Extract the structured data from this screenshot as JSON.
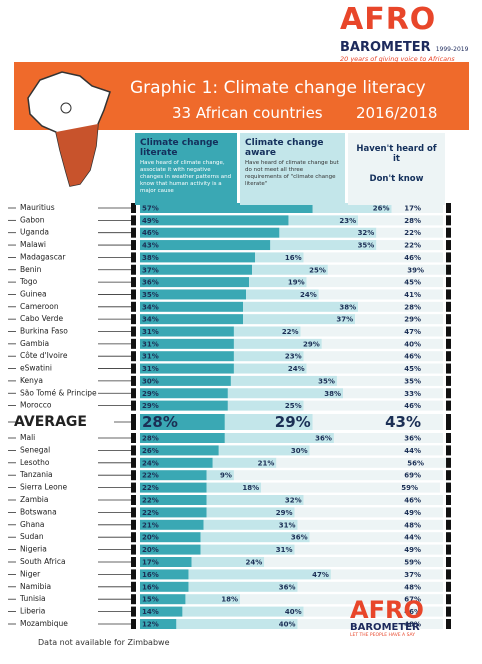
{
  "logo": {
    "brand": "AFRO",
    "name": "BAROMETER",
    "years": "1999-2019",
    "tagline": "20 years of giving voice to Africans"
  },
  "footer_logo": {
    "brand": "AFRO",
    "name": "BAROMETER",
    "tagline": "LET THE PEOPLE HAVE A SAY"
  },
  "chart_data": {
    "type": "bar",
    "orientation": "horizontal",
    "stacked": true,
    "title": "Graphic 1: Climate change literacy",
    "subtitle": "33 African countries",
    "period": "2016/2018",
    "note": "Data not available for Zimbabwe",
    "xlim": [
      0,
      100
    ],
    "categories": [
      "Mauritius",
      "Gabon",
      "Uganda",
      "Malawi",
      "Madagascar",
      "Benin",
      "Togo",
      "Guinea",
      "Cameroon",
      "Cabo Verde",
      "Burkina Faso",
      "Gambia",
      "Côte d'Ivoire",
      "eSwatini",
      "Kenya",
      "São Tomé & Principe",
      "Morocco",
      "AVERAGE",
      "Mali",
      "Senegal",
      "Lesotho",
      "Tanzania",
      "Sierra Leone",
      "Zambia",
      "Botswana",
      "Ghana",
      "Sudan",
      "Nigeria",
      "South Africa",
      "Niger",
      "Namibia",
      "Tunisia",
      "Liberia",
      "Mozambique"
    ],
    "series": [
      {
        "name": "Climate change\nliterate",
        "description": "Have heard of climate change, associate it with negative changes in weather patterns and know that human activity is a major cause",
        "color": "#3aa8b4",
        "values": [
          57,
          49,
          46,
          43,
          38,
          37,
          36,
          35,
          34,
          34,
          31,
          31,
          31,
          31,
          30,
          29,
          29,
          28,
          28,
          26,
          24,
          22,
          22,
          22,
          22,
          21,
          20,
          20,
          17,
          16,
          16,
          15,
          14,
          12
        ],
        "value_labels": [
          "57%",
          "49%",
          "46%",
          "43%",
          "38%",
          "37%",
          "36%",
          "35%",
          "34%",
          "34%",
          "31%",
          "31%",
          "31%",
          "31%",
          "30%",
          "29%",
          "29%",
          "28%",
          "28%",
          "26%",
          "24%",
          "22%",
          "22%",
          "22%",
          "22%",
          "21%",
          "20%",
          "20%",
          "17%",
          "16%",
          "16%",
          "15%",
          "14%",
          "12%"
        ]
      },
      {
        "name": "Climate change\naware",
        "description": "Have heard of climate change but do not meet all three requirements of \"climate change literate\"",
        "color": "#c3e6ea",
        "values": [
          26,
          23,
          32,
          35,
          16,
          25,
          19,
          24,
          38,
          37,
          22,
          29,
          23,
          24,
          35,
          38,
          25,
          29,
          36,
          30,
          21,
          9,
          18,
          32,
          29,
          31,
          36,
          31,
          24,
          47,
          36,
          18,
          40,
          40
        ],
        "value_labels": [
          "26%",
          "23%",
          "32%",
          "35%",
          "16%",
          "25%",
          "19%",
          "24%",
          "38%",
          "37%",
          "22%",
          "29%",
          "23%",
          "24%",
          "35%",
          "38%",
          "25%",
          "29%",
          "36%",
          "30%",
          "21%",
          "9%",
          "18%",
          "32%",
          "29%",
          "31%",
          "36%",
          "31%",
          "24%",
          "47%",
          "36%",
          "18%",
          "40%",
          "40%"
        ]
      },
      {
        "name": "Haven't heard of it\n\nDon't know",
        "color": "#edf4f5",
        "values": [
          17,
          28,
          22,
          22,
          46,
          39,
          45,
          41,
          28,
          29,
          47,
          40,
          46,
          45,
          35,
          33,
          46,
          43,
          36,
          44,
          56,
          69,
          59,
          46,
          49,
          48,
          44,
          49,
          59,
          37,
          48,
          67,
          46,
          48
        ],
        "value_labels": [
          "17%",
          "28%",
          "22%",
          "22%",
          "46%",
          "39%",
          "45%",
          "41%",
          "28%",
          "29%",
          "47%",
          "40%",
          "46%",
          "45%",
          "35%",
          "33%",
          "46%",
          "43%",
          "36%",
          "44%",
          "56%",
          "69%",
          "59%",
          "46%",
          "49%",
          "48%",
          "44%",
          "49%",
          "59%",
          "37%",
          "48%",
          "67%",
          "46%",
          "48%"
        ]
      }
    ]
  }
}
